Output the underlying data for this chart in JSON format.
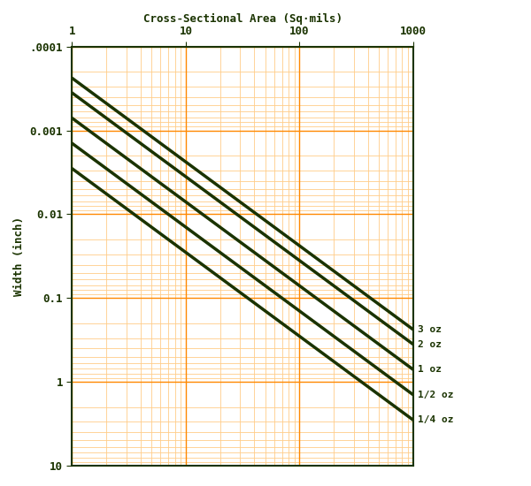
{
  "title_top": "Cross-Sectional Area (Sq·mils)",
  "ylabel": "Width (inch)",
  "x_min": 1,
  "x_max": 1000,
  "y_min": 0.0001,
  "y_max": 10,
  "lines": [
    {
      "label": "3 oz",
      "thickness_mil": 4.2
    },
    {
      "label": "2 oz",
      "thickness_mil": 2.8
    },
    {
      "label": "1 oz",
      "thickness_mil": 1.4
    },
    {
      "label": "1/2 oz",
      "thickness_mil": 0.7
    },
    {
      "label": "1/4 oz",
      "thickness_mil": 0.35
    }
  ],
  "line_color": "#1a3300",
  "line_width": 2.5,
  "bg_color": "#ffffff",
  "grid_major_color": "#ff8800",
  "grid_minor_color": "#ffcc88",
  "label_color": "#1a3300",
  "border_color": "#1a3300",
  "ytick_labels": [
    ".0001",
    "0.001",
    "0.01",
    "0.1",
    "1",
    "10"
  ],
  "ytick_values": [
    0.0001,
    0.001,
    0.01,
    0.1,
    1,
    10
  ],
  "xtick_labels": [
    "1",
    "10",
    "100",
    "1000"
  ],
  "xtick_values": [
    1,
    10,
    100,
    1000
  ]
}
